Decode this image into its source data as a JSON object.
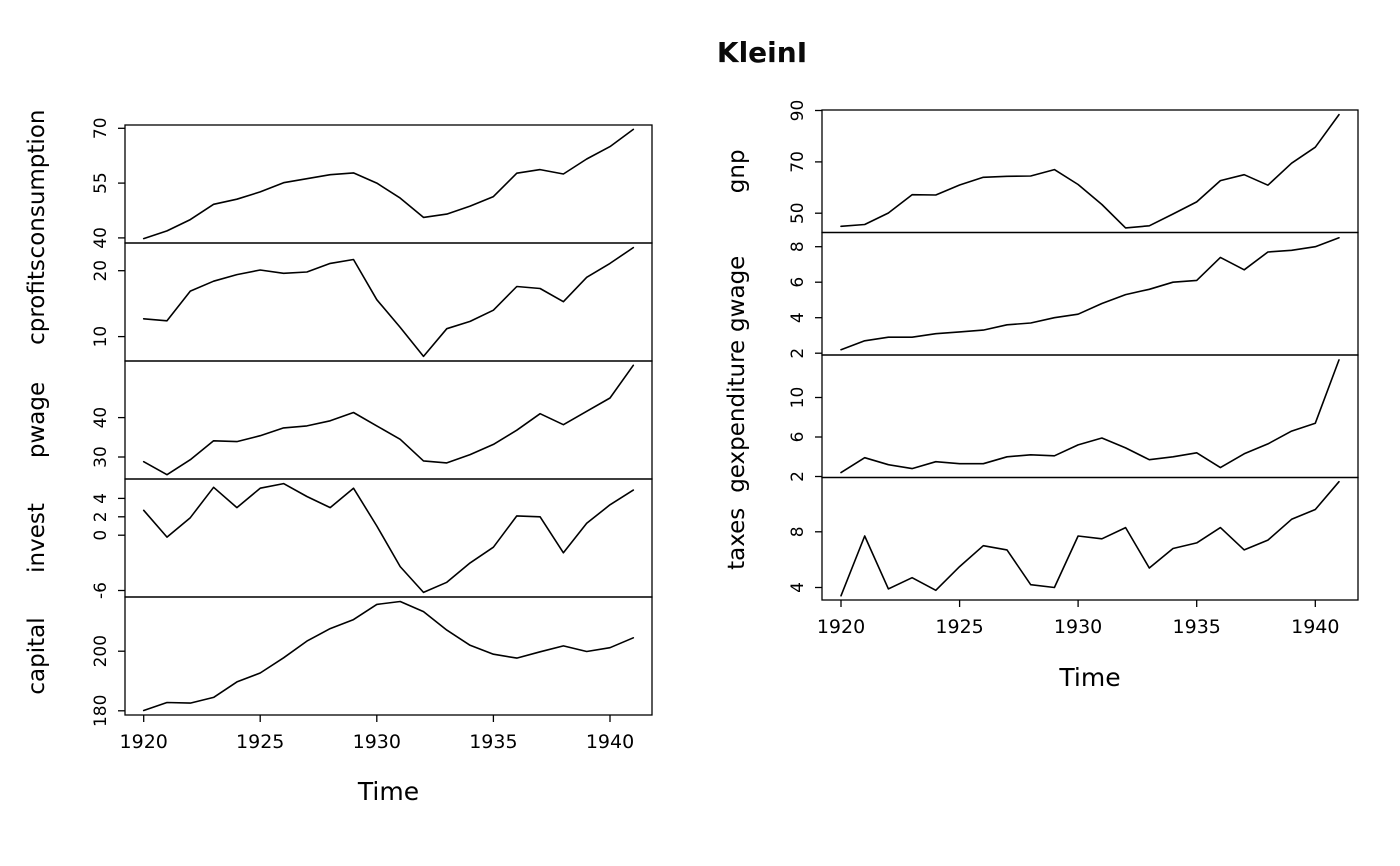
{
  "chart_data": {
    "type": "line",
    "title": "KleinI",
    "xlabel": "Time",
    "grid": false,
    "legend": "none",
    "colors": {
      "line": "#000000",
      "text": "#000000",
      "background": "#ffffff"
    },
    "x": [
      1920,
      1921,
      1922,
      1923,
      1924,
      1925,
      1926,
      1927,
      1928,
      1929,
      1930,
      1931,
      1932,
      1933,
      1934,
      1935,
      1936,
      1937,
      1938,
      1939,
      1940,
      1941
    ],
    "xticks": [
      1920,
      1925,
      1930,
      1935,
      1940
    ],
    "xlim": [
      1919.2,
      1941.8
    ],
    "figures": [
      {
        "name": "left-column",
        "panels": [
          {
            "label": "consumption",
            "yticks": [
              40,
              55,
              70
            ],
            "ylim": [
              38.6,
              70.9
            ],
            "values": [
              39.8,
              41.9,
              45.0,
              49.2,
              50.6,
              52.6,
              55.1,
              56.2,
              57.3,
              57.8,
              55.0,
              50.9,
              45.6,
              46.5,
              48.7,
              51.3,
              57.7,
              58.7,
              57.5,
              61.6,
              65.0,
              69.7
            ]
          },
          {
            "label": "cprofits",
            "yticks": [
              10,
              20
            ],
            "ylim": [
              6.3,
              24.2
            ],
            "values": [
              12.7,
              12.4,
              16.9,
              18.4,
              19.4,
              20.1,
              19.6,
              19.8,
              21.1,
              21.7,
              15.6,
              11.4,
              7.0,
              11.2,
              12.3,
              14.0,
              17.6,
              17.3,
              15.3,
              19.0,
              21.1,
              23.5
            ]
          },
          {
            "label": "pwage",
            "yticks": [
              30,
              40
            ],
            "ylim": [
              24.4,
              54.4
            ],
            "values": [
              28.8,
              25.5,
              29.3,
              34.1,
              33.9,
              35.4,
              37.4,
              37.9,
              39.2,
              41.3,
              37.9,
              34.5,
              29.0,
              28.5,
              30.6,
              33.2,
              36.8,
              41.0,
              38.2,
              41.6,
              45.0,
              53.3
            ]
          },
          {
            "label": "invest",
            "yticks": [
              4,
              2,
              0,
              -6
            ],
            "ylim": [
              -6.7,
              6.1
            ],
            "values": [
              2.7,
              -0.2,
              1.9,
              5.2,
              3.0,
              5.1,
              5.6,
              4.2,
              3.0,
              5.1,
              1.0,
              -3.4,
              -6.2,
              -5.1,
              -3.0,
              -1.3,
              2.1,
              2.0,
              -1.9,
              1.3,
              3.3,
              4.9
            ]
          },
          {
            "label": "capital",
            "yticks": [
              180,
              200
            ],
            "ylim": [
              178.6,
              218.2
            ],
            "values": [
              180.1,
              182.8,
              182.6,
              184.5,
              189.7,
              192.7,
              197.8,
              203.4,
              207.6,
              210.6,
              215.7,
              216.7,
              213.3,
              207.1,
              202.0,
              199.0,
              197.7,
              199.8,
              201.8,
              199.9,
              201.2,
              204.5
            ]
          }
        ]
      },
      {
        "name": "right-column",
        "panels": [
          {
            "label": "gnp",
            "yticks": [
              50,
              70,
              90
            ],
            "ylim": [
              42.5,
              90.2
            ],
            "values": [
              44.9,
              45.6,
              50.1,
              57.2,
              57.1,
              61.0,
              64.0,
              64.4,
              64.5,
              67.0,
              61.2,
              53.4,
              44.3,
              45.1,
              49.7,
              54.4,
              62.7,
              65.0,
              60.9,
              69.5,
              75.7,
              88.4
            ]
          },
          {
            "label": "gwage",
            "yticks": [
              2,
              4,
              6,
              8
            ],
            "ylim": [
              1.9,
              8.8
            ],
            "values": [
              2.2,
              2.7,
              2.9,
              2.9,
              3.1,
              3.2,
              3.3,
              3.6,
              3.7,
              4.0,
              4.2,
              4.8,
              5.3,
              5.6,
              6.0,
              6.1,
              7.4,
              6.7,
              7.7,
              7.8,
              8.0,
              8.5
            ]
          },
          {
            "label": "gexpenditure",
            "yticks": [
              2,
              6,
              10
            ],
            "ylim": [
              1.9,
              14.3
            ],
            "values": [
              2.4,
              3.9,
              3.2,
              2.8,
              3.5,
              3.3,
              3.3,
              4.0,
              4.2,
              4.1,
              5.2,
              5.9,
              4.9,
              3.7,
              4.0,
              4.4,
              2.9,
              4.3,
              5.3,
              6.6,
              7.4,
              13.8
            ]
          },
          {
            "label": "taxes",
            "yticks": [
              4,
              8
            ],
            "ylim": [
              3.1,
              11.9
            ],
            "values": [
              3.4,
              7.7,
              3.9,
              4.7,
              3.8,
              5.5,
              7.0,
              6.7,
              4.2,
              4.0,
              7.7,
              7.5,
              8.3,
              5.4,
              6.8,
              7.2,
              8.3,
              6.7,
              7.4,
              8.9,
              9.6,
              11.6
            ]
          }
        ]
      }
    ]
  }
}
